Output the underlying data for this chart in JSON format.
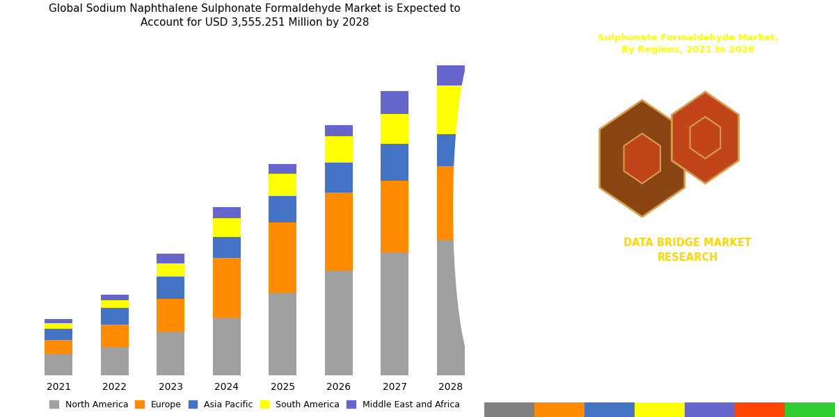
{
  "title_left": "Global Sodium Naphthalene Sulphonate Formaldehyde Market is Expected to\nAccount for USD 3,555.251 Million by 2028",
  "title_right": "Sulphonate Formaldehyde Market,\nBy Regions, 2021 to 2028",
  "right_subtitle": "DATA BRIDGE MARKET\nRESEARCH",
  "years": [
    "2021",
    "2022",
    "2023",
    "2024",
    "2025",
    "2026",
    "2027",
    "2028"
  ],
  "segments": [
    "North America",
    "Europe",
    "Asia Pacific",
    "South America",
    "Middle East and Africa"
  ],
  "colors": {
    "North America": "#A0A0A0",
    "Europe": "#FF8C00",
    "Asia Pacific": "#4472C4",
    "South America": "#FFFF00",
    "Middle East and Africa": "#6666CC"
  },
  "data": {
    "North America": [
      55,
      75,
      115,
      155,
      220,
      280,
      330,
      360
    ],
    "Europe": [
      40,
      60,
      90,
      160,
      190,
      210,
      190,
      200
    ],
    "Asia Pacific": [
      30,
      45,
      60,
      55,
      70,
      80,
      100,
      85
    ],
    "South America": [
      15,
      20,
      35,
      50,
      60,
      70,
      80,
      130
    ],
    "Middle East and Africa": [
      10,
      15,
      25,
      30,
      25,
      30,
      60,
      55
    ]
  },
  "right_bg_color": "#C1441A",
  "right_title_color": "#FFFF00",
  "right_subtitle_color": "#FFD700",
  "left_bg_color": "#FFFFFF",
  "title_fontsize": 11,
  "axis_label_fontsize": 10,
  "legend_fontsize": 9,
  "bar_width": 0.5,
  "hex_color_outer1": "#8B4513",
  "hex_color_outer2": "#C1441A",
  "hex_edge_color": "#D4A050",
  "hex_inner_color": "#C1441A"
}
